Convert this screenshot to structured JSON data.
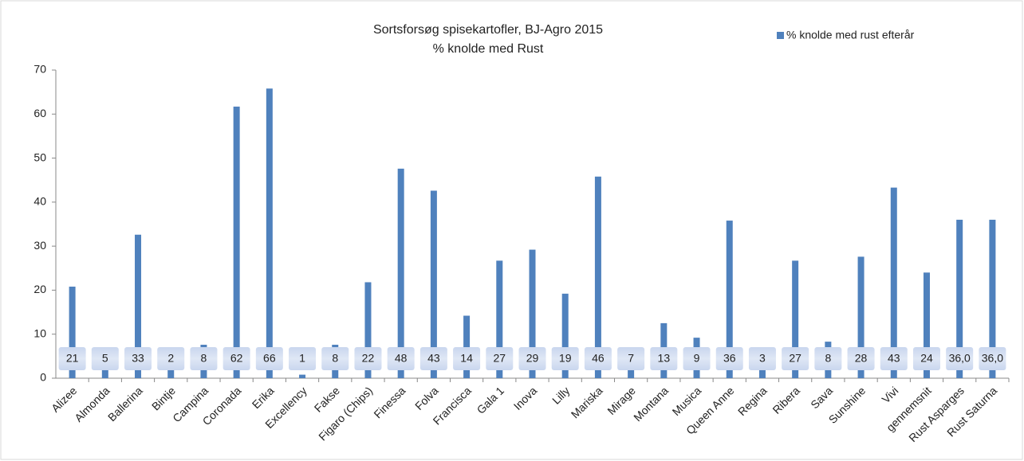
{
  "chart_data": {
    "type": "bar",
    "title": "Sortsforsøg spisekartofler, BJ-Agro 2015",
    "subtitle": "% knolde med Rust",
    "categories": [
      "Alizee",
      "Almonda",
      "Ballerina",
      "Bintje",
      "Campina",
      "Coronada",
      "Erika",
      "Excellency",
      "Fakse",
      "Figaro (Chips)",
      "Finessa",
      "Folva",
      "Francisca",
      "Gala 1",
      "Inova",
      "Lilly",
      "Mariska",
      "Mirage",
      "Montana",
      "Musica",
      "Queen Anne",
      "Regina",
      "Ribera",
      "Sava",
      "Sunshine",
      "Vivi",
      "gennemsnit",
      "Rust Asparges",
      "Rust Saturna"
    ],
    "series": [
      {
        "name": "% knolde  med rust efterår",
        "color": "#4f81bd",
        "values": [
          20.8,
          5,
          32.6,
          2,
          7.6,
          61.7,
          65.8,
          0.8,
          7.6,
          21.8,
          47.6,
          42.6,
          14.2,
          26.7,
          29.2,
          19.2,
          45.8,
          6.7,
          12.5,
          9.2,
          35.8,
          3,
          26.7,
          8.3,
          27.6,
          43.3,
          24,
          36,
          36
        ],
        "value_labels": [
          "21",
          "5",
          "33",
          "2",
          "8",
          "62",
          "66",
          "1",
          "8",
          "22",
          "48",
          "43",
          "14",
          "27",
          "29",
          "19",
          "46",
          "7",
          "13",
          "9",
          "36",
          "3",
          "27",
          "8",
          "28",
          "43",
          "24",
          "36,0",
          "36,0"
        ]
      }
    ],
    "ylim": [
      0,
      70
    ],
    "yticks": [
      0,
      10,
      20,
      30,
      40,
      50,
      60,
      70
    ],
    "legend": "top-right"
  }
}
